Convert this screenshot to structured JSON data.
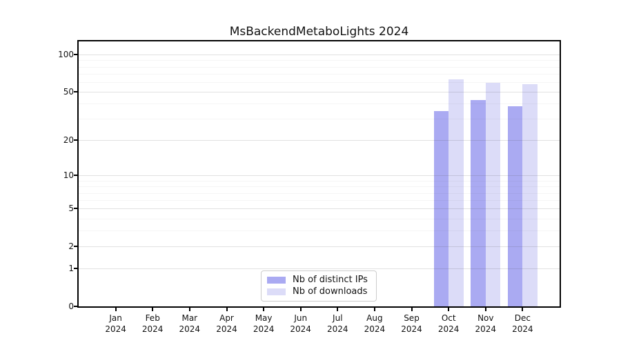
{
  "chart_data": {
    "type": "bar",
    "title": "MsBackendMetaboLights 2024",
    "x_tick_months": [
      "Jan",
      "Feb",
      "Mar",
      "Apr",
      "May",
      "Jun",
      "Jul",
      "Aug",
      "Sep",
      "Oct",
      "Nov",
      "Dec"
    ],
    "x_tick_year": "2024",
    "series": [
      {
        "name": "Nb of distinct IPs",
        "color": "#aaaaf2",
        "values": [
          0,
          0,
          0,
          0,
          0,
          0,
          0,
          0,
          0,
          35,
          43,
          38
        ]
      },
      {
        "name": "Nb of downloads",
        "color": "#dcdcf8",
        "values": [
          0,
          0,
          0,
          0,
          0,
          0,
          0,
          0,
          0,
          63,
          59,
          58
        ]
      }
    ],
    "y_scale": "log10(value+1)",
    "y_ticks_labeled": [
      0,
      1,
      2,
      5,
      10,
      20,
      50,
      100
    ],
    "y_minor_gridlines": [
      3,
      4,
      6,
      7,
      8,
      9,
      30,
      40,
      60,
      70,
      80,
      90
    ],
    "ylim": [
      0,
      127.5
    ],
    "grid": true,
    "legend_position": "lower center",
    "colors": {
      "background": "#ffffff",
      "axes": "#000000",
      "legend_border": "#cccccc",
      "text": "#111111"
    }
  }
}
